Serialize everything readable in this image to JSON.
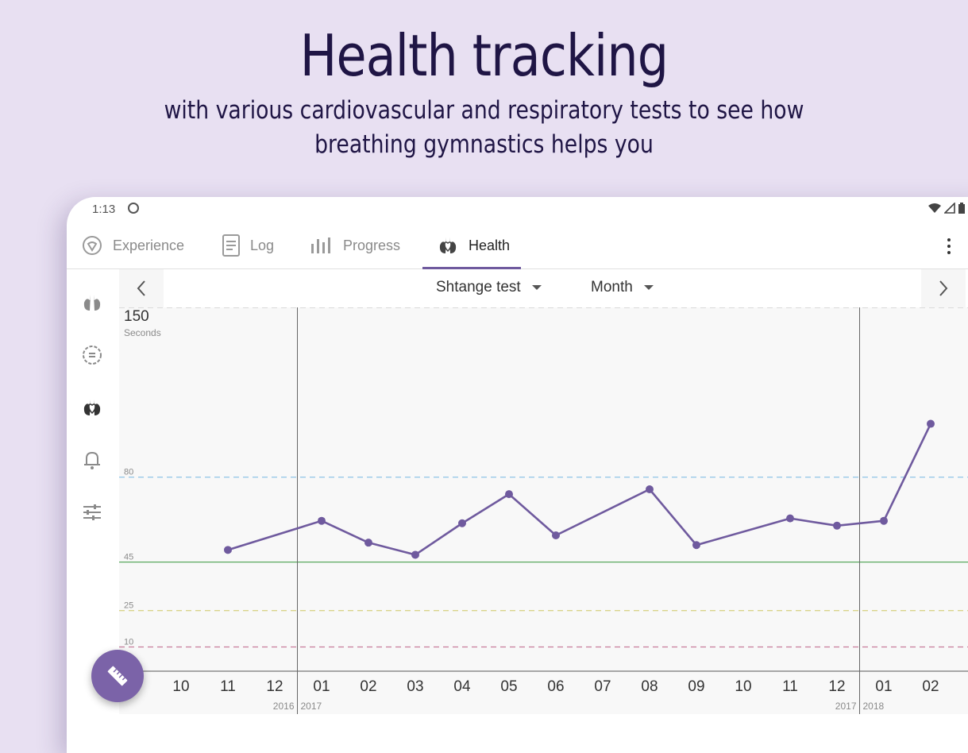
{
  "promo": {
    "title": "Health tracking",
    "subtitle_line1": "with various cardiovascular and respiratory tests to see how",
    "subtitle_line2": "breathing gymnastics helps you"
  },
  "status_bar": {
    "time": "1:13"
  },
  "tabs": [
    {
      "label": "Experience",
      "icon": "compass-icon",
      "active": false
    },
    {
      "label": "Log",
      "icon": "document-icon",
      "active": false
    },
    {
      "label": "Progress",
      "icon": "bar-chart-icon",
      "active": false
    },
    {
      "label": "Health",
      "icon": "lungs-heart-icon",
      "active": true
    }
  ],
  "side_rail": [
    "lungs-icon",
    "timer-icon",
    "lungs-heart-icon",
    "bell-icon",
    "sliders-icon"
  ],
  "toolbar": {
    "test_select": "Shtange test",
    "period_select": "Month"
  },
  "colors": {
    "line": "#6f5a9e",
    "accent": "#7b63a8",
    "band_80": "#8fc3e6",
    "band_45": "#5aa85e",
    "band_25": "#d9d48a",
    "band_10": "#c77d9c"
  },
  "chart_data": {
    "type": "line",
    "ylabel_value": "150",
    "ylabel_unit": "Seconds",
    "ylim": [
      0,
      150
    ],
    "x": [
      "10",
      "11",
      "12",
      "01",
      "02",
      "03",
      "04",
      "05",
      "06",
      "07",
      "08",
      "09",
      "10",
      "11",
      "12",
      "01",
      "02"
    ],
    "year_labels": [
      {
        "after_index": 2,
        "left": "2016",
        "right": "2017"
      },
      {
        "after_index": 14,
        "left": "2017",
        "right": "2018"
      }
    ],
    "series": [
      {
        "values": [
          null,
          50,
          null,
          62,
          53,
          48,
          61,
          73,
          56,
          null,
          75,
          52,
          null,
          63,
          60,
          62,
          102
        ]
      }
    ],
    "reference_lines": [
      {
        "value": 150,
        "label": ""
      },
      {
        "value": 80,
        "label": "80"
      },
      {
        "value": 45,
        "label": "45"
      },
      {
        "value": 25,
        "label": "25"
      },
      {
        "value": 10,
        "label": "10"
      }
    ]
  }
}
